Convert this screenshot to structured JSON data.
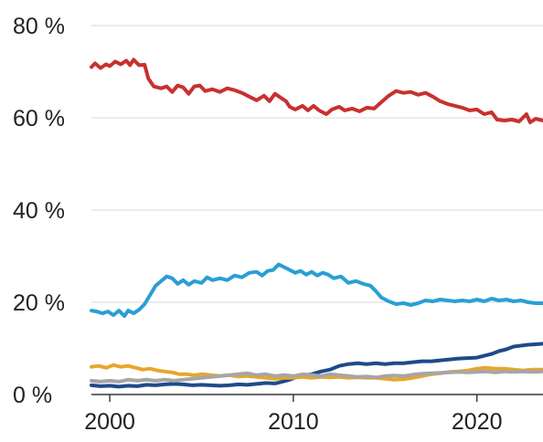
{
  "chart_data": {
    "type": "line",
    "title": "",
    "xlabel": "",
    "ylabel": "",
    "xlim": [
      1999,
      2023.6
    ],
    "ylim": [
      0,
      80
    ],
    "y_unit": "%",
    "grid": "horizontal",
    "legend": "none",
    "y_ticks": [
      {
        "value": 0,
        "label": "0 %"
      },
      {
        "value": 20,
        "label": "20 %"
      },
      {
        "value": 40,
        "label": "40 %"
      },
      {
        "value": 60,
        "label": "60 %"
      },
      {
        "value": 80,
        "label": "80 %"
      }
    ],
    "x_ticks": [
      {
        "value": 2000,
        "label": "2000"
      },
      {
        "value": 2010,
        "label": "2010"
      },
      {
        "value": 2020,
        "label": "2020"
      }
    ],
    "series": [
      {
        "color": "#c8312f",
        "points": [
          [
            1999.0,
            71.0
          ],
          [
            1999.2,
            71.8
          ],
          [
            1999.5,
            70.8
          ],
          [
            1999.8,
            71.6
          ],
          [
            2000.0,
            71.2
          ],
          [
            2000.3,
            72.2
          ],
          [
            2000.6,
            71.6
          ],
          [
            2000.9,
            72.4
          ],
          [
            2001.1,
            71.4
          ],
          [
            2001.3,
            72.6
          ],
          [
            2001.6,
            71.4
          ],
          [
            2001.9,
            71.5
          ],
          [
            2002.1,
            68.5
          ],
          [
            2002.4,
            66.8
          ],
          [
            2002.8,
            66.4
          ],
          [
            2003.1,
            66.8
          ],
          [
            2003.4,
            65.6
          ],
          [
            2003.7,
            67.0
          ],
          [
            2004.0,
            66.6
          ],
          [
            2004.3,
            65.2
          ],
          [
            2004.6,
            66.8
          ],
          [
            2004.9,
            67.0
          ],
          [
            2005.2,
            65.8
          ],
          [
            2005.6,
            66.2
          ],
          [
            2006.0,
            65.6
          ],
          [
            2006.4,
            66.4
          ],
          [
            2006.8,
            66.0
          ],
          [
            2007.2,
            65.4
          ],
          [
            2007.6,
            64.6
          ],
          [
            2008.0,
            63.8
          ],
          [
            2008.4,
            64.8
          ],
          [
            2008.7,
            63.6
          ],
          [
            2009.0,
            65.2
          ],
          [
            2009.3,
            64.4
          ],
          [
            2009.6,
            63.6
          ],
          [
            2009.8,
            62.4
          ],
          [
            2010.1,
            61.8
          ],
          [
            2010.5,
            62.6
          ],
          [
            2010.8,
            61.6
          ],
          [
            2011.1,
            62.6
          ],
          [
            2011.4,
            61.6
          ],
          [
            2011.8,
            60.8
          ],
          [
            2012.1,
            61.8
          ],
          [
            2012.5,
            62.4
          ],
          [
            2012.8,
            61.6
          ],
          [
            2013.2,
            62.0
          ],
          [
            2013.6,
            61.4
          ],
          [
            2014.0,
            62.2
          ],
          [
            2014.4,
            62.0
          ],
          [
            2014.8,
            63.4
          ],
          [
            2015.2,
            64.8
          ],
          [
            2015.6,
            65.8
          ],
          [
            2016.0,
            65.4
          ],
          [
            2016.4,
            65.6
          ],
          [
            2016.8,
            65.0
          ],
          [
            2017.2,
            65.4
          ],
          [
            2017.6,
            64.6
          ],
          [
            2018.0,
            63.6
          ],
          [
            2018.4,
            63.0
          ],
          [
            2018.8,
            62.6
          ],
          [
            2019.2,
            62.2
          ],
          [
            2019.6,
            61.6
          ],
          [
            2020.0,
            61.8
          ],
          [
            2020.4,
            60.8
          ],
          [
            2020.8,
            61.2
          ],
          [
            2021.1,
            59.6
          ],
          [
            2021.5,
            59.4
          ],
          [
            2021.9,
            59.6
          ],
          [
            2022.3,
            59.2
          ],
          [
            2022.7,
            60.8
          ],
          [
            2022.9,
            59.0
          ],
          [
            2023.2,
            59.8
          ],
          [
            2023.6,
            59.4
          ]
        ]
      },
      {
        "color": "#2a9fd4",
        "points": [
          [
            1999.0,
            18.2
          ],
          [
            1999.3,
            18.0
          ],
          [
            1999.6,
            17.6
          ],
          [
            1999.9,
            18.0
          ],
          [
            2000.2,
            17.2
          ],
          [
            2000.5,
            18.2
          ],
          [
            2000.8,
            17.0
          ],
          [
            2001.0,
            18.2
          ],
          [
            2001.3,
            17.6
          ],
          [
            2001.6,
            18.4
          ],
          [
            2001.9,
            19.6
          ],
          [
            2002.2,
            21.6
          ],
          [
            2002.5,
            23.6
          ],
          [
            2002.8,
            24.6
          ],
          [
            2003.1,
            25.6
          ],
          [
            2003.4,
            25.2
          ],
          [
            2003.7,
            24.0
          ],
          [
            2004.0,
            24.8
          ],
          [
            2004.3,
            23.8
          ],
          [
            2004.6,
            24.6
          ],
          [
            2005.0,
            24.2
          ],
          [
            2005.3,
            25.4
          ],
          [
            2005.6,
            24.8
          ],
          [
            2006.0,
            25.2
          ],
          [
            2006.4,
            24.8
          ],
          [
            2006.8,
            25.8
          ],
          [
            2007.2,
            25.4
          ],
          [
            2007.6,
            26.4
          ],
          [
            2008.0,
            26.6
          ],
          [
            2008.3,
            25.8
          ],
          [
            2008.6,
            26.8
          ],
          [
            2008.9,
            27.0
          ],
          [
            2009.2,
            28.2
          ],
          [
            2009.5,
            27.6
          ],
          [
            2009.8,
            27.0
          ],
          [
            2010.1,
            26.4
          ],
          [
            2010.4,
            26.8
          ],
          [
            2010.7,
            26.0
          ],
          [
            2011.0,
            26.6
          ],
          [
            2011.3,
            25.8
          ],
          [
            2011.6,
            26.4
          ],
          [
            2011.9,
            26.0
          ],
          [
            2012.2,
            25.2
          ],
          [
            2012.6,
            25.6
          ],
          [
            2013.0,
            24.2
          ],
          [
            2013.4,
            24.6
          ],
          [
            2013.8,
            24.0
          ],
          [
            2014.2,
            23.6
          ],
          [
            2014.5,
            22.4
          ],
          [
            2014.8,
            21.0
          ],
          [
            2015.2,
            20.2
          ],
          [
            2015.6,
            19.6
          ],
          [
            2016.0,
            19.8
          ],
          [
            2016.4,
            19.4
          ],
          [
            2016.8,
            19.8
          ],
          [
            2017.2,
            20.4
          ],
          [
            2017.6,
            20.2
          ],
          [
            2018.0,
            20.6
          ],
          [
            2018.4,
            20.4
          ],
          [
            2018.8,
            20.2
          ],
          [
            2019.2,
            20.4
          ],
          [
            2019.6,
            20.2
          ],
          [
            2020.0,
            20.6
          ],
          [
            2020.4,
            20.2
          ],
          [
            2020.8,
            20.8
          ],
          [
            2021.2,
            20.4
          ],
          [
            2021.6,
            20.6
          ],
          [
            2022.0,
            20.2
          ],
          [
            2022.4,
            20.4
          ],
          [
            2022.8,
            20.0
          ],
          [
            2023.2,
            19.8
          ],
          [
            2023.6,
            19.8
          ]
        ]
      },
      {
        "color": "#1f4a8a",
        "points": [
          [
            1999.0,
            2.0
          ],
          [
            1999.5,
            1.8
          ],
          [
            2000.0,
            1.9
          ],
          [
            2000.5,
            1.7
          ],
          [
            2001.0,
            1.9
          ],
          [
            2001.5,
            1.8
          ],
          [
            2002.0,
            2.1
          ],
          [
            2002.5,
            2.0
          ],
          [
            2003.0,
            2.2
          ],
          [
            2003.5,
            2.3
          ],
          [
            2004.0,
            2.2
          ],
          [
            2004.5,
            2.0
          ],
          [
            2005.0,
            2.1
          ],
          [
            2005.5,
            2.0
          ],
          [
            2006.0,
            1.9
          ],
          [
            2006.5,
            2.0
          ],
          [
            2007.0,
            2.2
          ],
          [
            2007.5,
            2.1
          ],
          [
            2008.0,
            2.3
          ],
          [
            2008.5,
            2.5
          ],
          [
            2009.0,
            2.4
          ],
          [
            2009.4,
            2.8
          ],
          [
            2009.8,
            3.2
          ],
          [
            2010.2,
            3.8
          ],
          [
            2010.6,
            4.2
          ],
          [
            2011.0,
            4.4
          ],
          [
            2011.5,
            5.0
          ],
          [
            2012.0,
            5.4
          ],
          [
            2012.5,
            6.2
          ],
          [
            2013.0,
            6.6
          ],
          [
            2013.5,
            6.8
          ],
          [
            2014.0,
            6.6
          ],
          [
            2014.5,
            6.8
          ],
          [
            2015.0,
            6.6
          ],
          [
            2015.5,
            6.8
          ],
          [
            2016.0,
            6.8
          ],
          [
            2016.5,
            7.0
          ],
          [
            2017.0,
            7.2
          ],
          [
            2017.5,
            7.2
          ],
          [
            2018.0,
            7.4
          ],
          [
            2018.5,
            7.6
          ],
          [
            2019.0,
            7.8
          ],
          [
            2019.5,
            7.9
          ],
          [
            2020.0,
            8.0
          ],
          [
            2020.4,
            8.4
          ],
          [
            2020.8,
            8.8
          ],
          [
            2021.2,
            9.4
          ],
          [
            2021.6,
            9.8
          ],
          [
            2022.0,
            10.4
          ],
          [
            2022.4,
            10.6
          ],
          [
            2022.8,
            10.8
          ],
          [
            2023.2,
            10.9
          ],
          [
            2023.6,
            11.0
          ]
        ]
      },
      {
        "color": "#e8a62b",
        "points": [
          [
            1999.0,
            6.0
          ],
          [
            1999.4,
            6.2
          ],
          [
            1999.8,
            5.8
          ],
          [
            2000.2,
            6.4
          ],
          [
            2000.6,
            6.0
          ],
          [
            2001.0,
            6.2
          ],
          [
            2001.4,
            5.8
          ],
          [
            2001.8,
            5.4
          ],
          [
            2002.2,
            5.6
          ],
          [
            2002.6,
            5.2
          ],
          [
            2003.0,
            5.0
          ],
          [
            2003.4,
            4.8
          ],
          [
            2003.8,
            4.4
          ],
          [
            2004.2,
            4.4
          ],
          [
            2004.6,
            4.2
          ],
          [
            2005.0,
            4.4
          ],
          [
            2005.5,
            4.2
          ],
          [
            2006.0,
            4.0
          ],
          [
            2006.5,
            4.2
          ],
          [
            2007.0,
            3.9
          ],
          [
            2007.5,
            4.0
          ],
          [
            2008.0,
            3.8
          ],
          [
            2008.5,
            3.6
          ],
          [
            2009.0,
            3.4
          ],
          [
            2009.5,
            3.6
          ],
          [
            2010.0,
            3.6
          ],
          [
            2010.5,
            3.8
          ],
          [
            2011.0,
            3.6
          ],
          [
            2011.5,
            3.8
          ],
          [
            2012.0,
            3.7
          ],
          [
            2012.5,
            3.8
          ],
          [
            2013.0,
            3.6
          ],
          [
            2013.5,
            3.7
          ],
          [
            2014.0,
            3.6
          ],
          [
            2014.5,
            3.6
          ],
          [
            2015.0,
            3.4
          ],
          [
            2015.5,
            3.2
          ],
          [
            2016.0,
            3.3
          ],
          [
            2016.5,
            3.6
          ],
          [
            2017.0,
            4.0
          ],
          [
            2017.5,
            4.4
          ],
          [
            2018.0,
            4.6
          ],
          [
            2018.5,
            4.9
          ],
          [
            2019.0,
            5.0
          ],
          [
            2019.5,
            5.2
          ],
          [
            2020.0,
            5.6
          ],
          [
            2020.5,
            5.8
          ],
          [
            2021.0,
            5.6
          ],
          [
            2021.5,
            5.6
          ],
          [
            2022.0,
            5.4
          ],
          [
            2022.5,
            5.2
          ],
          [
            2023.0,
            5.4
          ],
          [
            2023.6,
            5.4
          ]
        ]
      },
      {
        "color": "#a6a6a6",
        "points": [
          [
            1999.0,
            3.0
          ],
          [
            1999.5,
            2.8
          ],
          [
            2000.0,
            3.0
          ],
          [
            2000.5,
            2.8
          ],
          [
            2001.0,
            3.2
          ],
          [
            2001.5,
            3.0
          ],
          [
            2002.0,
            3.2
          ],
          [
            2002.5,
            3.0
          ],
          [
            2003.0,
            3.2
          ],
          [
            2003.5,
            3.0
          ],
          [
            2004.0,
            3.2
          ],
          [
            2004.5,
            3.4
          ],
          [
            2005.0,
            3.6
          ],
          [
            2005.5,
            3.8
          ],
          [
            2006.0,
            4.0
          ],
          [
            2006.5,
            4.2
          ],
          [
            2007.0,
            4.4
          ],
          [
            2007.5,
            4.6
          ],
          [
            2008.0,
            4.2
          ],
          [
            2008.5,
            4.4
          ],
          [
            2009.0,
            4.0
          ],
          [
            2009.5,
            4.2
          ],
          [
            2010.0,
            4.0
          ],
          [
            2010.5,
            4.4
          ],
          [
            2011.0,
            4.2
          ],
          [
            2011.5,
            4.0
          ],
          [
            2012.0,
            4.4
          ],
          [
            2012.5,
            4.2
          ],
          [
            2013.0,
            4.0
          ],
          [
            2013.5,
            3.8
          ],
          [
            2014.0,
            3.9
          ],
          [
            2014.5,
            3.7
          ],
          [
            2015.0,
            4.0
          ],
          [
            2015.5,
            4.1
          ],
          [
            2016.0,
            4.0
          ],
          [
            2016.5,
            4.3
          ],
          [
            2017.0,
            4.5
          ],
          [
            2017.5,
            4.6
          ],
          [
            2018.0,
            4.7
          ],
          [
            2018.5,
            4.8
          ],
          [
            2019.0,
            4.9
          ],
          [
            2019.5,
            4.8
          ],
          [
            2020.0,
            4.9
          ],
          [
            2020.5,
            5.0
          ],
          [
            2021.0,
            4.8
          ],
          [
            2021.5,
            5.0
          ],
          [
            2022.0,
            4.9
          ],
          [
            2022.5,
            5.0
          ],
          [
            2023.0,
            4.9
          ],
          [
            2023.6,
            5.0
          ]
        ]
      }
    ]
  }
}
